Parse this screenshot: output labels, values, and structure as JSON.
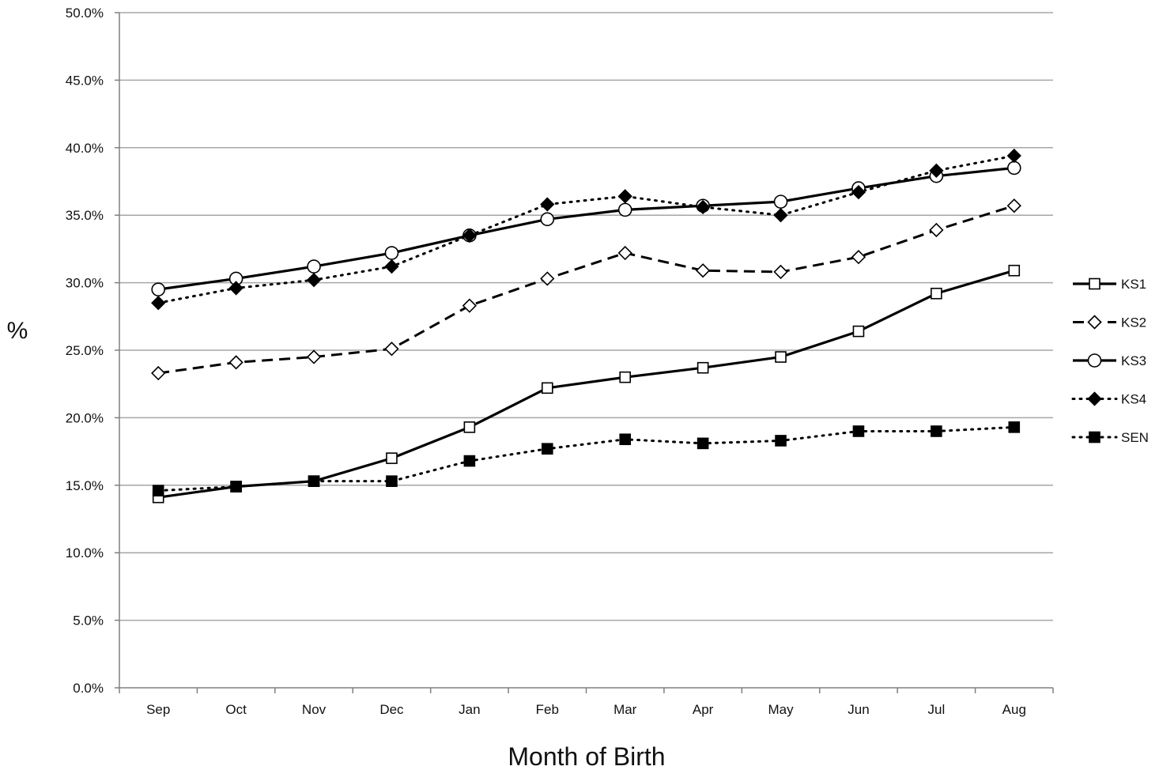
{
  "chart_data": {
    "type": "line",
    "title": "",
    "xlabel": "Month of Birth",
    "ylabel": "%",
    "ylim": [
      0,
      50
    ],
    "ytick_step": 5,
    "ytick_format": "percent_1dp",
    "grid": "horizontal",
    "legend_position": "right",
    "categories": [
      "Sep",
      "Oct",
      "Nov",
      "Dec",
      "Jan",
      "Feb",
      "Mar",
      "Apr",
      "May",
      "Jun",
      "Jul",
      "Aug"
    ],
    "series": [
      {
        "name": "KS1",
        "line_style": "solid",
        "marker": "square-open",
        "values": [
          14.1,
          14.9,
          15.3,
          17.0,
          19.3,
          22.2,
          23.0,
          23.7,
          24.5,
          26.4,
          29.2,
          30.9
        ]
      },
      {
        "name": "KS2",
        "line_style": "dashed",
        "marker": "diamond-open",
        "values": [
          23.3,
          24.1,
          24.5,
          25.1,
          28.3,
          30.3,
          32.2,
          30.9,
          30.8,
          31.9,
          33.9,
          35.7
        ]
      },
      {
        "name": "KS3",
        "line_style": "solid",
        "marker": "circle-open",
        "values": [
          29.5,
          30.3,
          31.2,
          32.2,
          33.5,
          34.7,
          35.4,
          35.7,
          36.0,
          37.0,
          37.9,
          38.5
        ]
      },
      {
        "name": "KS4",
        "line_style": "dotted",
        "marker": "diamond-filled",
        "values": [
          28.5,
          29.6,
          30.2,
          31.2,
          33.5,
          35.8,
          36.4,
          35.6,
          35.0,
          36.7,
          38.3,
          39.4
        ]
      },
      {
        "name": "SEN",
        "line_style": "dotted",
        "marker": "square-filled",
        "values": [
          14.6,
          14.9,
          15.3,
          15.3,
          16.8,
          17.7,
          18.4,
          18.1,
          18.3,
          19.0,
          19.0,
          19.3
        ]
      }
    ]
  },
  "colors": {
    "line": "#000000",
    "grid": "#a6a6a6",
    "axis": "#808080",
    "marker_fill_open": "#ffffff",
    "marker_fill_filled": "#000000"
  }
}
